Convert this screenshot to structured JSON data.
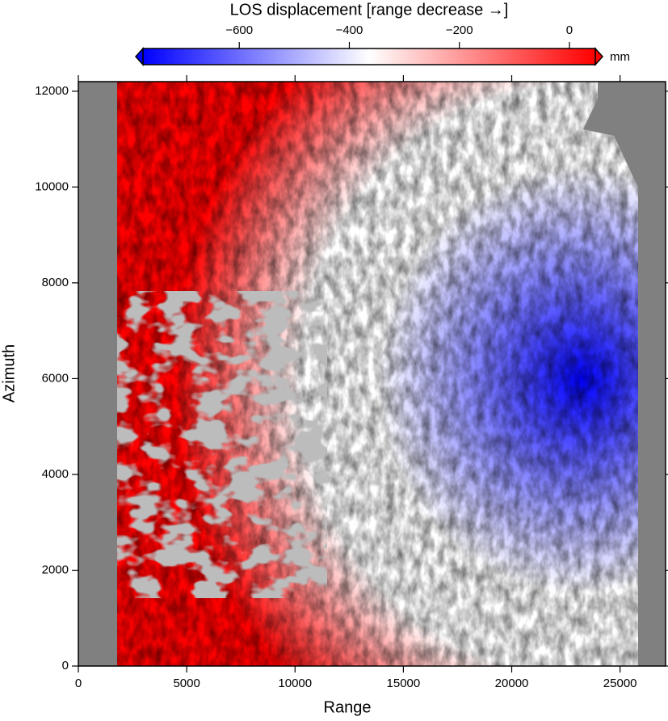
{
  "chart_data": {
    "type": "raster",
    "colorbar": {
      "title": "LOS displacement [range decrease →]",
      "unit": "mm",
      "clim": [
        -775,
        47
      ],
      "ticks": [
        {
          "value": -600,
          "label": "−600"
        },
        {
          "value": -400,
          "label": "−400"
        },
        {
          "value": -200,
          "label": "−200"
        },
        0
      ],
      "colormap": [
        "#0000ff",
        "#ffffff",
        "#ff0000"
      ]
    },
    "x_label": "Range",
    "y_label": "Azimuth",
    "xlim": [
      0,
      27100
    ],
    "xticks": [
      0,
      5000,
      10000,
      15000,
      20000,
      25000
    ],
    "ylim": [
      0,
      12200
    ],
    "yticks": [
      0,
      2000,
      4000,
      6000,
      8000,
      10000,
      12000
    ],
    "nodata_color": "#808080"
  }
}
